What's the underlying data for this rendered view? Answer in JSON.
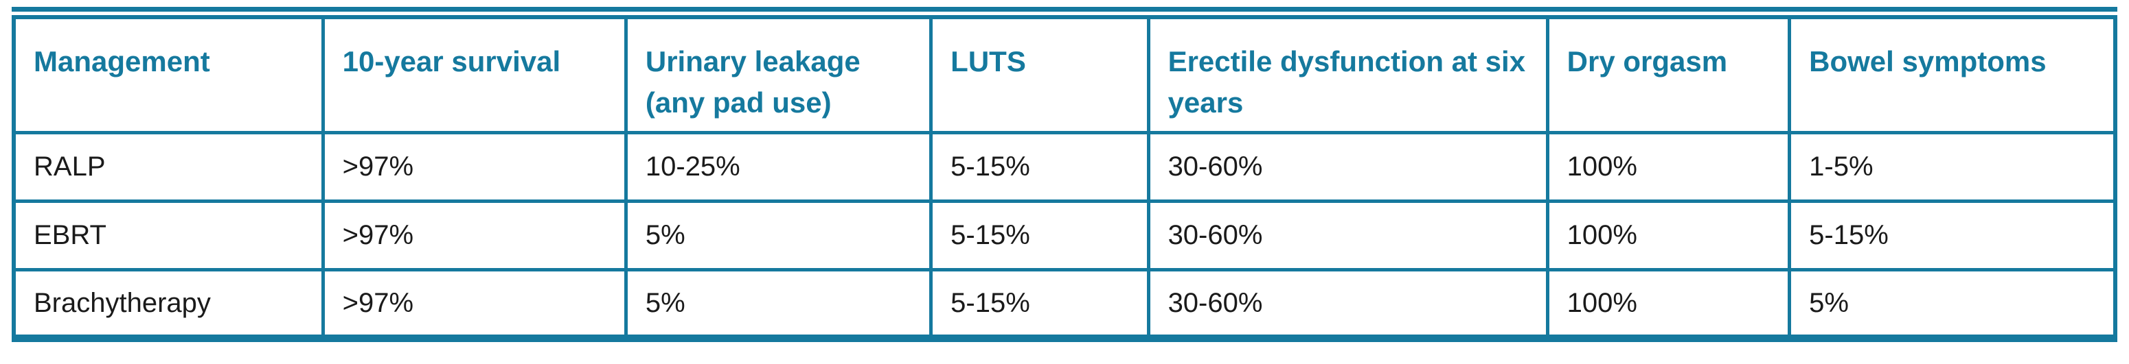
{
  "colors": {
    "accent": "#15799e",
    "text": "#1a1a1a",
    "background": "#ffffff"
  },
  "table": {
    "header": [
      "Management",
      "10-year survival",
      "Urinary leakage (any pad use)",
      "LUTS",
      "Erectile dysfunction at six years",
      "Dry orgasm",
      "Bowel symptoms"
    ],
    "rows": [
      {
        "cells": [
          "RALP",
          ">97%",
          "10-25%",
          "5-15%",
          "30-60%",
          "100%",
          "1-5%"
        ]
      },
      {
        "cells": [
          "EBRT",
          ">97%",
          "5%",
          "5-15%",
          "30-60%",
          "100%",
          "5-15%"
        ]
      },
      {
        "cells": [
          "Brachytherapy",
          ">97%",
          "5%",
          "5-15%",
          "30-60%",
          "100%",
          "5%"
        ]
      }
    ]
  }
}
